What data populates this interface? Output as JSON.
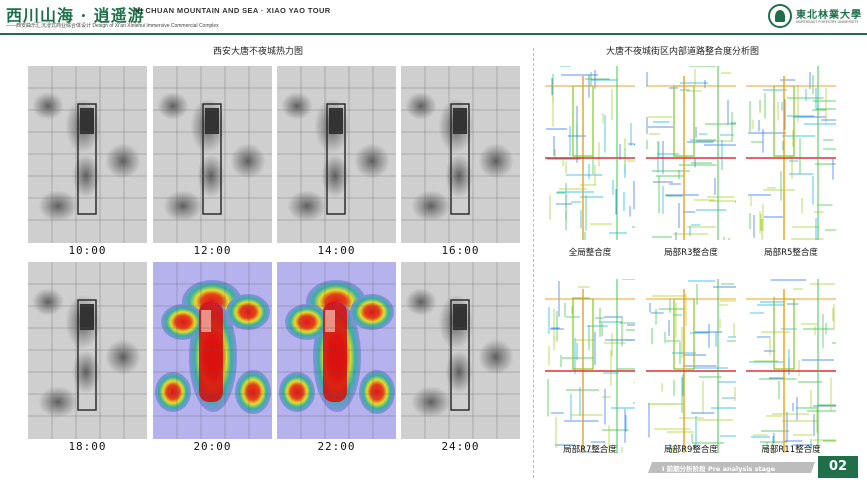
{
  "header": {
    "brand_cn": "西川山海 · 逍遥游",
    "brand_en": "XI CHUAN MOUNTAIN AND SEA · XIAO YAO TOUR",
    "brand_sub": "——西安曲乐汇沉浸式商业综合体设计 Design of Xi'an Xinlehui Immersive Commercial Complex",
    "logo_cn": "東北林業大學",
    "logo_en": "NORTHEAST FORESTRY UNIVERSITY",
    "accent_color": "#1f6f4a"
  },
  "left_section": {
    "title": "西安大唐不夜城热力图",
    "tiles": [
      {
        "label": "10:00",
        "mode": "gray"
      },
      {
        "label": "12:00",
        "mode": "gray"
      },
      {
        "label": "14:00",
        "mode": "gray"
      },
      {
        "label": "16:00",
        "mode": "gray"
      },
      {
        "label": "18:00",
        "mode": "gray"
      },
      {
        "label": "20:00",
        "mode": "heat"
      },
      {
        "label": "22:00",
        "mode": "heat"
      },
      {
        "label": "24:00",
        "mode": "gray"
      }
    ]
  },
  "right_section": {
    "title": "大唐不夜城街区内部道路整合度分析图",
    "tiles": [
      {
        "label": "全局整合度"
      },
      {
        "label": "局部R3整合度"
      },
      {
        "label": "局部R5整合度"
      },
      {
        "label": "局部R7整合度"
      },
      {
        "label": "局部R9整合度"
      },
      {
        "label": "局部R11整合度"
      }
    ]
  },
  "footer": {
    "stage_text": "I 前期分析阶段  Pre analysis stage",
    "page_number": "02"
  }
}
